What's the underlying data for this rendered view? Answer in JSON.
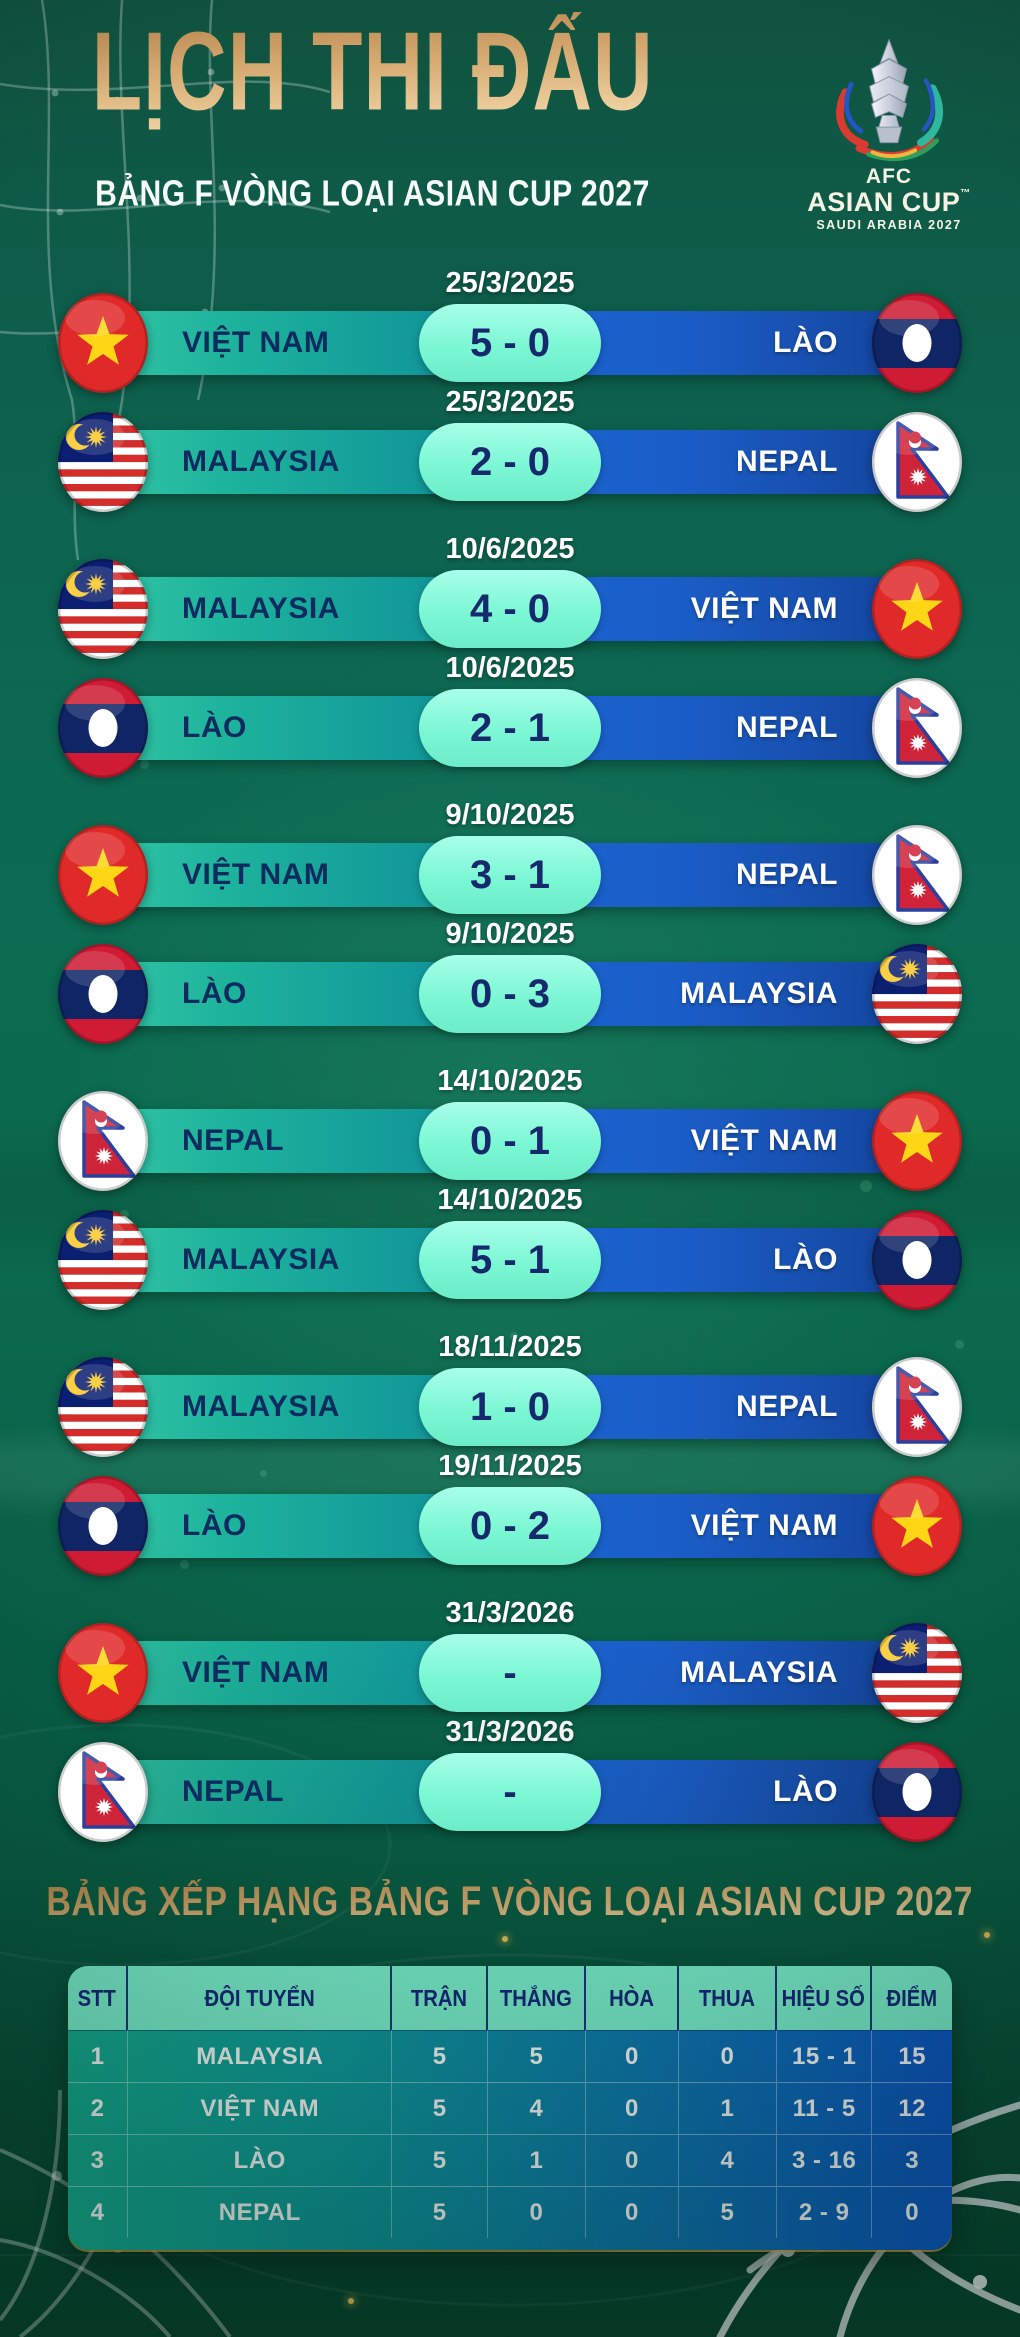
{
  "header": {
    "title": "LỊCH THI ĐẤU",
    "subtitle": "BẢNG F VÒNG LOẠI ASIAN CUP 2027",
    "logo": {
      "afc": "AFC",
      "competition": "ASIAN CUP",
      "trademark": "™",
      "host": "SAUDI ARABIA 2027"
    }
  },
  "matches": [
    {
      "date": "25/3/2025",
      "home": "VIỆT NAM",
      "away": "LÀO",
      "score": "5 - 0",
      "home_flag": "vietnam",
      "away_flag": "laos"
    },
    {
      "date": "25/3/2025",
      "home": "MALAYSIA",
      "away": "NEPAL",
      "score": "2 - 0",
      "home_flag": "malaysia",
      "away_flag": "nepal"
    },
    {
      "date": "10/6/2025",
      "home": "MALAYSIA",
      "away": "VIỆT NAM",
      "score": "4 - 0",
      "home_flag": "malaysia",
      "away_flag": "vietnam"
    },
    {
      "date": "10/6/2025",
      "home": "LÀO",
      "away": "NEPAL",
      "score": "2 - 1",
      "home_flag": "laos",
      "away_flag": "nepal"
    },
    {
      "date": "9/10/2025",
      "home": "VIỆT NAM",
      "away": "NEPAL",
      "score": "3 - 1",
      "home_flag": "vietnam",
      "away_flag": "nepal"
    },
    {
      "date": "9/10/2025",
      "home": "LÀO",
      "away": "MALAYSIA",
      "score": "0 - 3",
      "home_flag": "laos",
      "away_flag": "malaysia"
    },
    {
      "date": "14/10/2025",
      "home": "NEPAL",
      "away": "VIỆT NAM",
      "score": "0 - 1",
      "home_flag": "nepal",
      "away_flag": "vietnam"
    },
    {
      "date": "14/10/2025",
      "home": "MALAYSIA",
      "away": "LÀO",
      "score": "5 - 1",
      "home_flag": "malaysia",
      "away_flag": "laos"
    },
    {
      "date": "18/11/2025",
      "home": "MALAYSIA",
      "away": "NEPAL",
      "score": "1 - 0",
      "home_flag": "malaysia",
      "away_flag": "nepal"
    },
    {
      "date": "19/11/2025",
      "home": "LÀO",
      "away": "VIỆT NAM",
      "score": "0 - 2",
      "home_flag": "laos",
      "away_flag": "vietnam"
    },
    {
      "date": "31/3/2026",
      "home": "VIỆT NAM",
      "away": "MALAYSIA",
      "score": "-",
      "home_flag": "vietnam",
      "away_flag": "malaysia"
    },
    {
      "date": "31/3/2026",
      "home": "NEPAL",
      "away": "LÀO",
      "score": "-",
      "home_flag": "nepal",
      "away_flag": "laos"
    }
  ],
  "standings": {
    "title": "BẢNG XẾP HẠNG BẢNG F VÒNG LOẠI ASIAN CUP 2027",
    "columns": [
      "STT",
      "ĐỘI TUYỂN",
      "TRẬN",
      "THẮNG",
      "HÒA",
      "THUA",
      "HIỆU SỐ",
      "ĐIỂM"
    ],
    "rows": [
      [
        "1",
        "MALAYSIA",
        "5",
        "5",
        "0",
        "0",
        "15 - 1",
        "15"
      ],
      [
        "2",
        "VIỆT NAM",
        "5",
        "4",
        "0",
        "1",
        "11 - 5",
        "12"
      ],
      [
        "3",
        "LÀO",
        "5",
        "1",
        "0",
        "4",
        "3 - 16",
        "3"
      ],
      [
        "4",
        "NEPAL",
        "5",
        "0",
        "0",
        "5",
        "2 - 9",
        "0"
      ]
    ]
  },
  "colors": {
    "background_green": "#0b6a4e",
    "title_gold_light": "#f4d9ac",
    "title_gold_dark": "#b9874e",
    "bar_teal": "#1db39c",
    "bar_blue": "#1b5ec9",
    "score_pill_mint": "#7bf7d4",
    "score_text_navy": "#16296d",
    "table_header_mint": "#7df3d1",
    "header_text_navy": "#15297b",
    "white": "#ffffff"
  }
}
